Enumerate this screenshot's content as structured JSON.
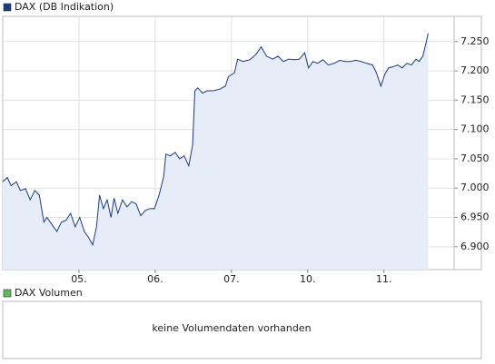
{
  "chart_data": [
    {
      "type": "area",
      "xlim": [
        0,
        5.92
      ],
      "xticks": [
        {
          "value": 1,
          "label": "05."
        },
        {
          "value": 2,
          "label": "06."
        },
        {
          "value": 3,
          "label": "07."
        },
        {
          "value": 4,
          "label": "10."
        },
        {
          "value": 5,
          "label": "11."
        }
      ],
      "ylim": [
        6861,
        7293
      ],
      "yticks": [
        {
          "value": 6900,
          "label": "6.900"
        },
        {
          "value": 6950,
          "label": "6.950"
        },
        {
          "value": 7000,
          "label": "7.000"
        },
        {
          "value": 7050,
          "label": "7.050"
        },
        {
          "value": 7100,
          "label": "7.100"
        },
        {
          "value": 7150,
          "label": "7.150"
        },
        {
          "value": 7200,
          "label": "7.200"
        },
        {
          "value": 7250,
          "label": "7.250"
        }
      ],
      "grid": true,
      "series": [
        {
          "name": "DAX (DB Indikation)",
          "color": "#1f3c7a",
          "fill": "#e6ecf8",
          "x": [
            0,
            0.06,
            0.11,
            0.18,
            0.23,
            0.3,
            0.36,
            0.42,
            0.48,
            0.54,
            0.58,
            0.65,
            0.71,
            0.77,
            0.83,
            0.89,
            0.95,
            1.01,
            1.07,
            1.13,
            1.18,
            1.23,
            1.27,
            1.32,
            1.37,
            1.42,
            1.46,
            1.51,
            1.57,
            1.63,
            1.69,
            1.75,
            1.81,
            1.87,
            1.93,
            1.99,
            2.05,
            2.11,
            2.14,
            2.2,
            2.26,
            2.32,
            2.38,
            2.44,
            2.49,
            2.52,
            2.56,
            2.62,
            2.68,
            2.76,
            2.85,
            2.92,
            2.96,
            3.04,
            3.08,
            3.15,
            3.24,
            3.32,
            3.39,
            3.46,
            3.54,
            3.61,
            3.68,
            3.75,
            3.83,
            3.89,
            3.96,
            4.01,
            4.07,
            4.13,
            4.2,
            4.27,
            4.35,
            4.42,
            4.49,
            4.56,
            4.63,
            4.7,
            4.77,
            4.85,
            4.9,
            4.96,
            5.01,
            5.06,
            5.12,
            5.18,
            5.24,
            5.3,
            5.36,
            5.42,
            5.46,
            5.51,
            5.55,
            5.58
          ],
          "values": [
            7011,
            7018,
            7004,
            7011,
            6996,
            6999,
            6980,
            6996,
            6988,
            6942,
            6950,
            6937,
            6926,
            6942,
            6945,
            6957,
            6934,
            6950,
            6926,
            6915,
            6903,
            6934,
            6988,
            6965,
            6980,
            6950,
            6983,
            6957,
            6980,
            6968,
            6977,
            6973,
            6953,
            6962,
            6965,
            6965,
            6988,
            7019,
            7058,
            7055,
            7061,
            7050,
            7055,
            7038,
            7073,
            7166,
            7171,
            7162,
            7166,
            7166,
            7169,
            7174,
            7190,
            7197,
            7220,
            7216,
            7219,
            7228,
            7241,
            7225,
            7220,
            7225,
            7216,
            7220,
            7219,
            7220,
            7231,
            7205,
            7216,
            7213,
            7219,
            7210,
            7213,
            7218,
            7216,
            7216,
            7218,
            7216,
            7213,
            7210,
            7197,
            7174,
            7194,
            7205,
            7207,
            7210,
            7205,
            7213,
            7210,
            7220,
            7216,
            7225,
            7247,
            7264
          ]
        }
      ]
    },
    {
      "type": "volume",
      "series": [
        {
          "name": "DAX Volumen",
          "color": "#5cb85c"
        }
      ],
      "message": "keine Volumendaten vorhanden"
    }
  ]
}
